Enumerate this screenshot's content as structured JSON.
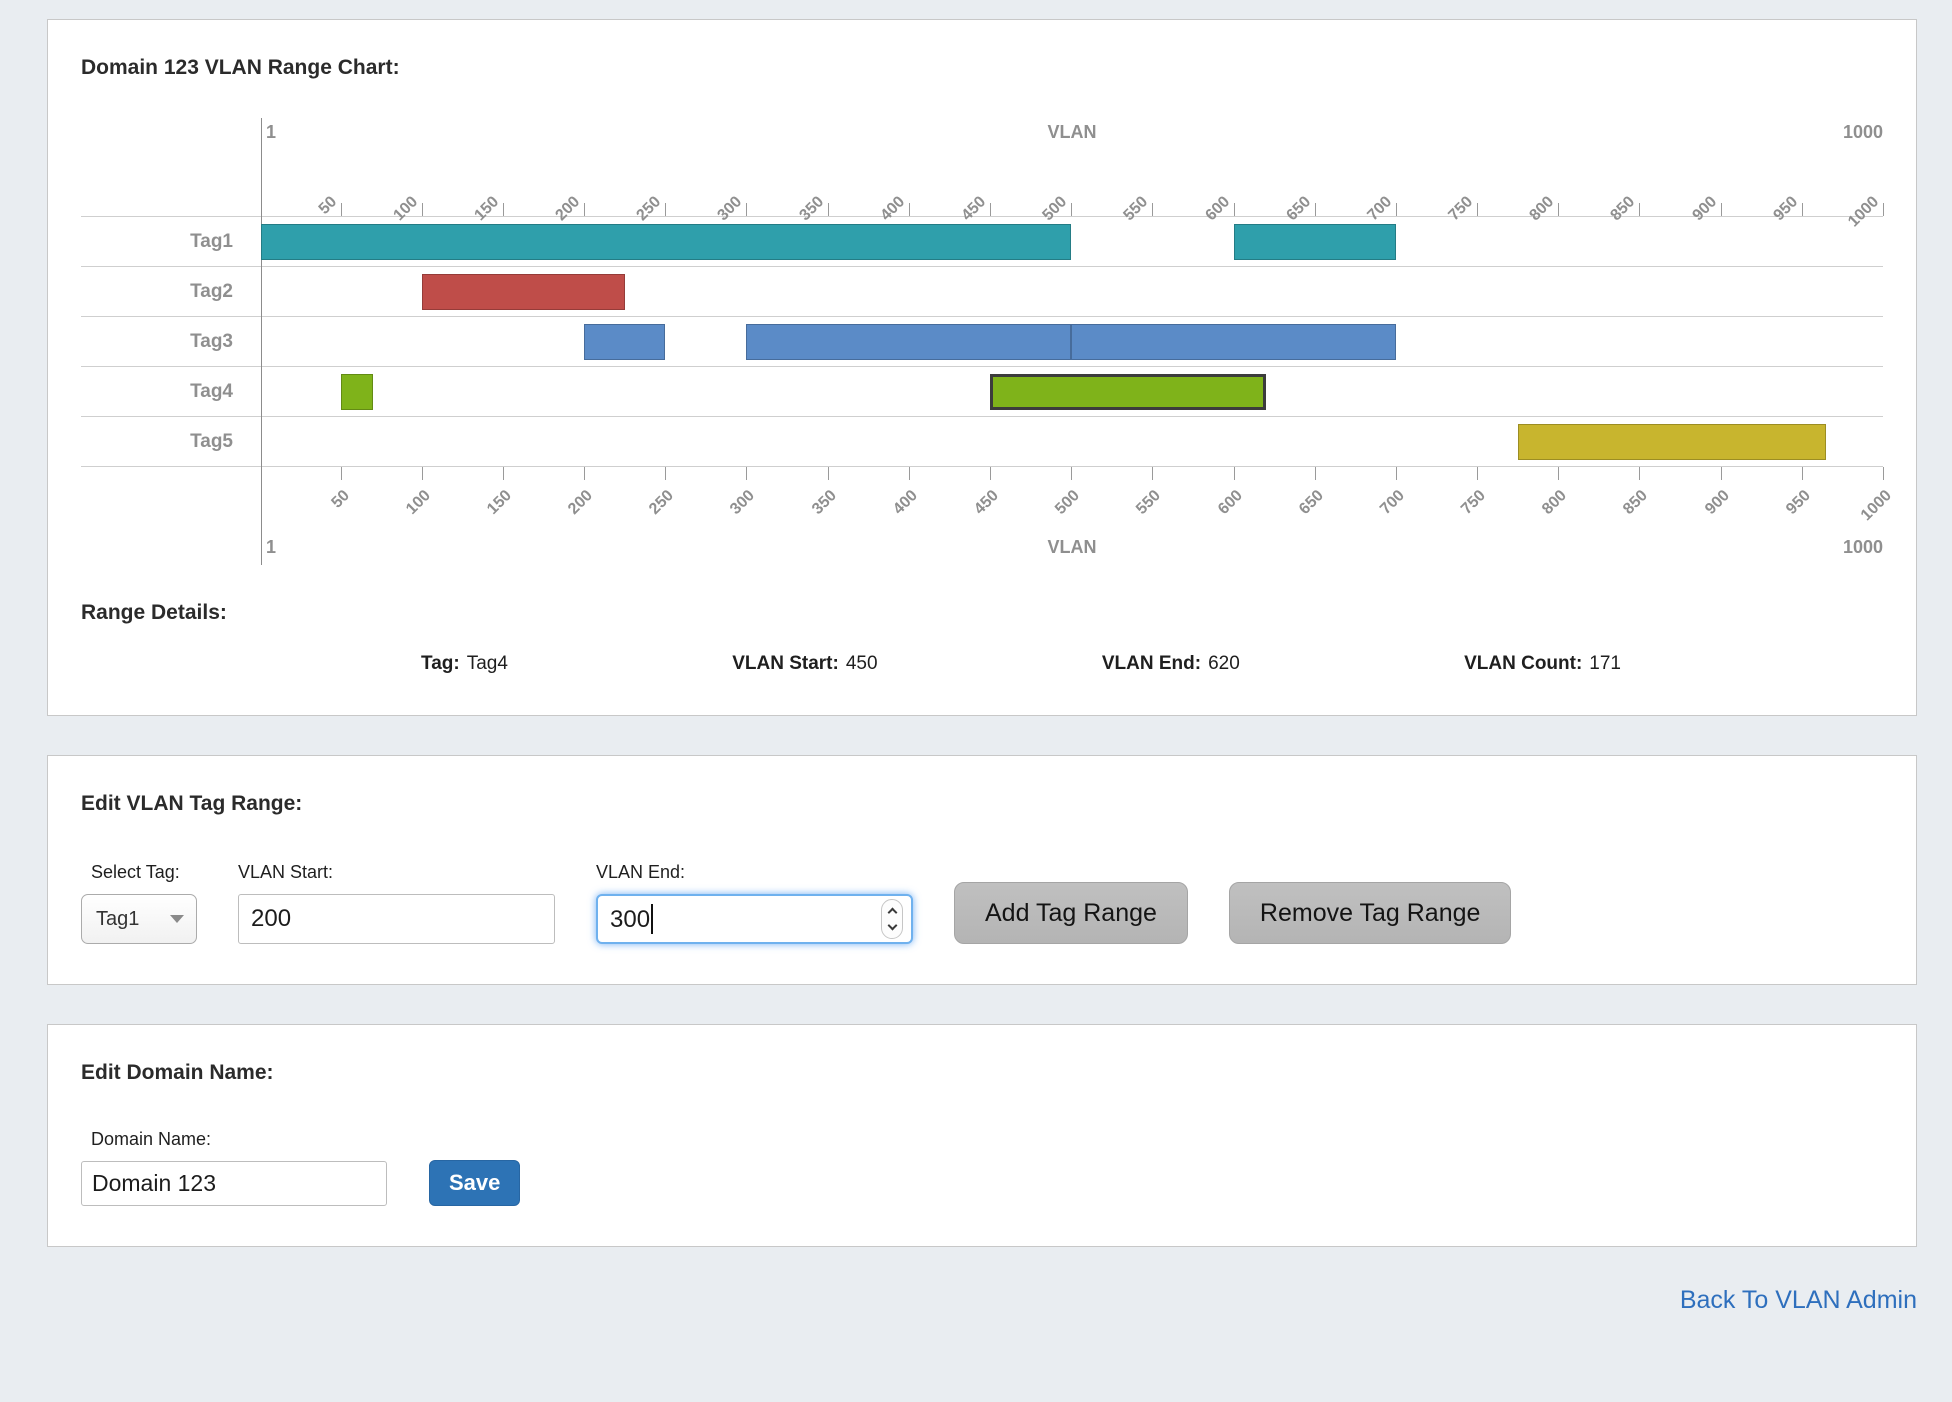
{
  "chart_panel": {
    "title": "Domain 123 VLAN Range Chart:",
    "range_details": {
      "heading": "Range Details:",
      "items": [
        {
          "label": "Tag:",
          "value": "Tag4"
        },
        {
          "label": "VLAN Start:",
          "value": "450"
        },
        {
          "label": "VLAN End:",
          "value": "620"
        },
        {
          "label": "VLAN Count:",
          "value": "171"
        }
      ]
    }
  },
  "chart_data": {
    "type": "gantt",
    "axis": {
      "title": "VLAN",
      "min": 1,
      "max": 1000,
      "min_label": "1",
      "max_label": "1000",
      "ticks": [
        50,
        100,
        150,
        200,
        250,
        300,
        350,
        400,
        450,
        500,
        550,
        600,
        650,
        700,
        750,
        800,
        850,
        900,
        950,
        1000
      ]
    },
    "rows": [
      {
        "tag": "Tag1",
        "color": "#2f9fab",
        "ranges": [
          {
            "start": 1,
            "end": 500
          },
          {
            "start": 600,
            "end": 700
          }
        ]
      },
      {
        "tag": "Tag2",
        "color": "#bf4d49",
        "ranges": [
          {
            "start": 100,
            "end": 225
          }
        ]
      },
      {
        "tag": "Tag3",
        "color": "#5b8bc7",
        "ranges": [
          {
            "start": 200,
            "end": 250
          },
          {
            "start": 300,
            "end": 500
          },
          {
            "start": 500,
            "end": 700
          }
        ]
      },
      {
        "tag": "Tag4",
        "color": "#7fb31a",
        "ranges": [
          {
            "start": 50,
            "end": 70
          },
          {
            "start": 450,
            "end": 620,
            "selected": true
          }
        ]
      },
      {
        "tag": "Tag5",
        "color": "#c8b52e",
        "ranges": [
          {
            "start": 775,
            "end": 965
          }
        ]
      }
    ]
  },
  "edit_range_panel": {
    "title": "Edit VLAN Tag Range:",
    "select_tag": {
      "label": "Select Tag:",
      "value": "Tag1"
    },
    "vlan_start": {
      "label": "VLAN Start:",
      "value": "200"
    },
    "vlan_end": {
      "label": "VLAN End:",
      "value": "300"
    },
    "buttons": {
      "add": "Add Tag Range",
      "remove": "Remove Tag Range"
    }
  },
  "edit_domain_panel": {
    "title": "Edit Domain Name:",
    "domain_name": {
      "label": "Domain Name:",
      "value": "Domain 123"
    },
    "save": "Save"
  },
  "footer": {
    "back_link": "Back To VLAN Admin"
  }
}
